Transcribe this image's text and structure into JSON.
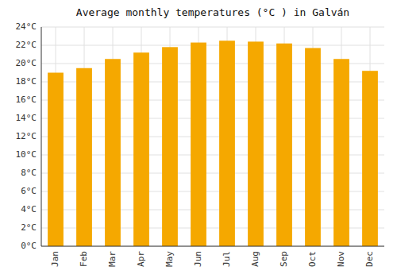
{
  "chart_data": {
    "type": "bar",
    "title": "Average monthly temperatures (°C ) in Galván",
    "categories": [
      "Jan",
      "Feb",
      "Mar",
      "Apr",
      "May",
      "Jun",
      "Jul",
      "Aug",
      "Sep",
      "Oct",
      "Nov",
      "Dec"
    ],
    "values": [
      19.0,
      19.5,
      20.5,
      21.2,
      21.8,
      22.3,
      22.5,
      22.4,
      22.2,
      21.7,
      20.5,
      19.2
    ],
    "color": "#F5A800",
    "ylim": [
      0,
      24
    ],
    "yticks": [
      {
        "value": 0,
        "label": "0°C"
      },
      {
        "value": 2,
        "label": "2°C"
      },
      {
        "value": 4,
        "label": "4°C"
      },
      {
        "value": 6,
        "label": "6°C"
      },
      {
        "value": 8,
        "label": "8°C"
      },
      {
        "value": 10,
        "label": "10°C"
      },
      {
        "value": 12,
        "label": "12°C"
      },
      {
        "value": 14,
        "label": "14°C"
      },
      {
        "value": 16,
        "label": "16°C"
      },
      {
        "value": 18,
        "label": "18°C"
      },
      {
        "value": 20,
        "label": "20°C"
      },
      {
        "value": 22,
        "label": "22°C"
      },
      {
        "value": 24,
        "label": "24°C"
      }
    ],
    "grid": true
  }
}
